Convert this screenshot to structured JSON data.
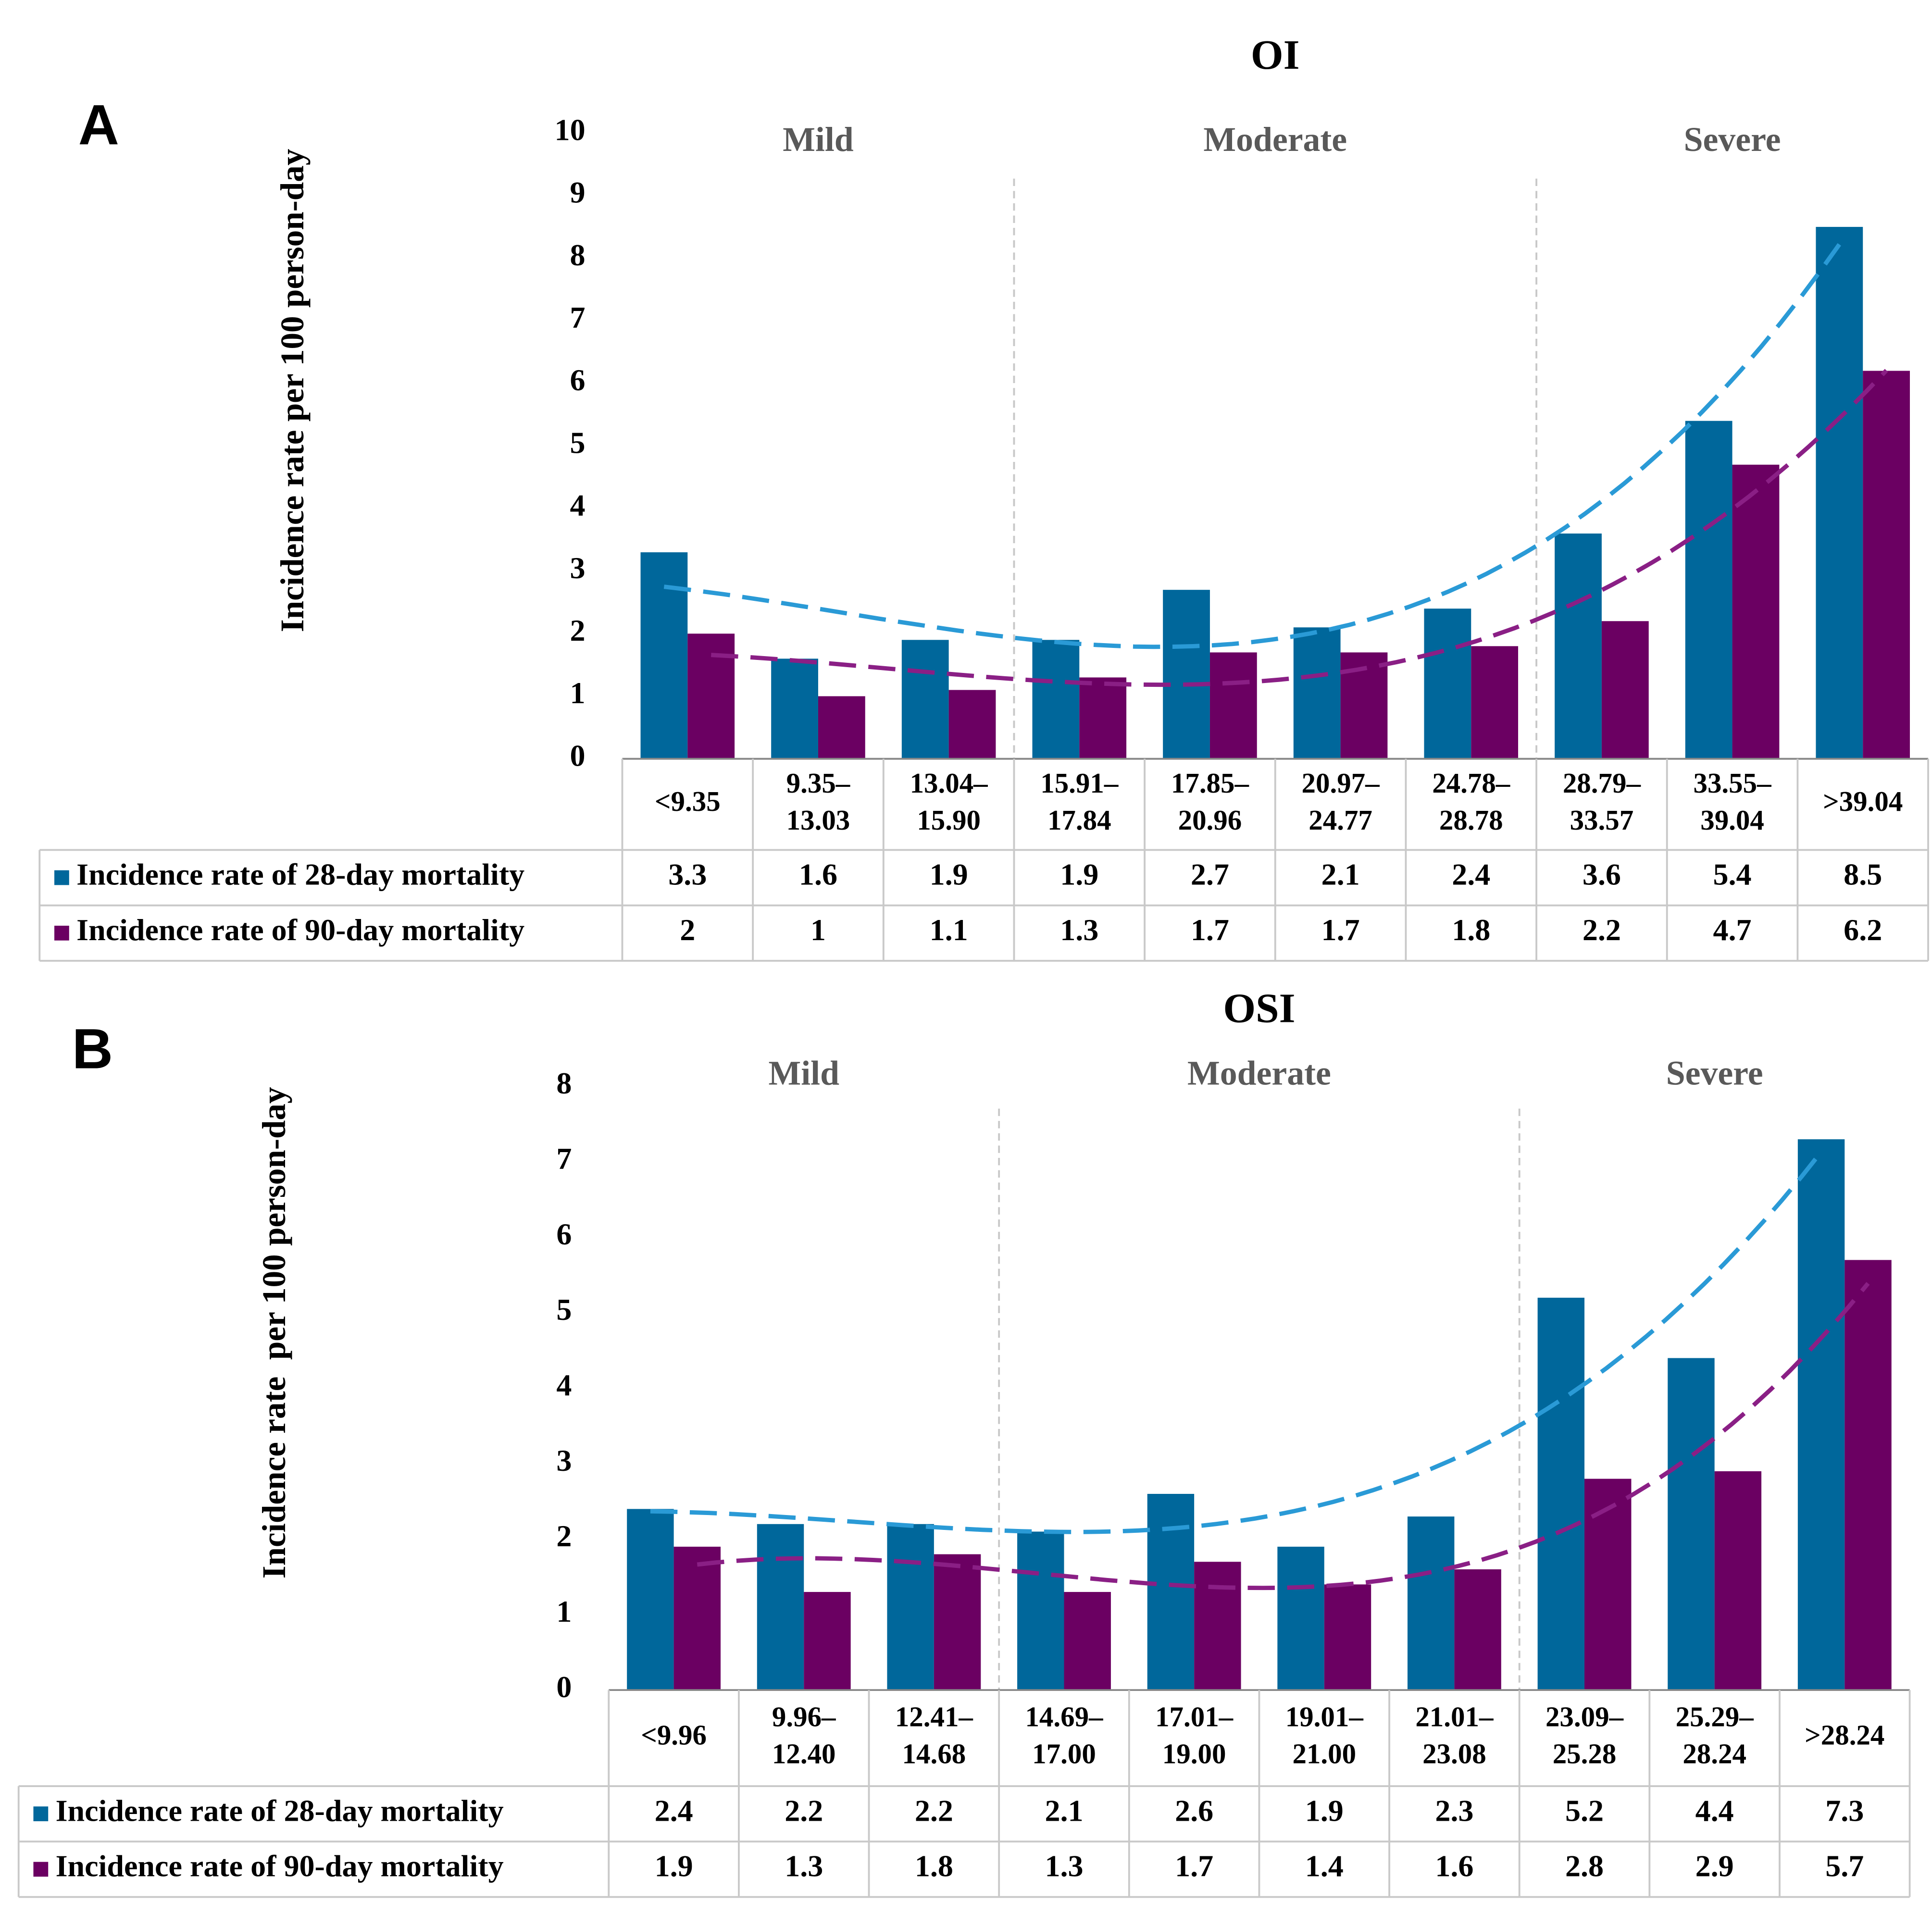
{
  "chart_data": [
    {
      "type": "bar",
      "panel": "A",
      "title": "OI",
      "y_label": "Incidence rate per 100 person-day",
      "categories": [
        "<9.35",
        "9.35–13.03",
        "13.04–15.90",
        "15.91–17.84",
        "17.85–20.96",
        "20.97–24.77",
        "24.78–28.78",
        "28.79–33.57",
        "33.55–39.04",
        ">39.04"
      ],
      "series": [
        {
          "name": "Incidence rate of 28-day mortality",
          "color": "#00679b",
          "values": [
            3.3,
            1.6,
            1.9,
            1.9,
            2.7,
            2.1,
            2.4,
            3.6,
            5.4,
            8.5
          ]
        },
        {
          "name": "Incidence rate of 90-day mortality",
          "color": "#6b0062",
          "values": [
            2,
            1,
            1.1,
            1.3,
            1.7,
            1.7,
            1.8,
            2.2,
            4.7,
            6.2
          ]
        }
      ],
      "trendline": "polynomial",
      "trend_colors": [
        "#2a9ad6",
        "#8a1f85"
      ],
      "sections": [
        {
          "label": "Mild",
          "categories": [
            "<9.35",
            "9.35–13.03",
            "13.04–15.90"
          ]
        },
        {
          "label": "Moderate",
          "categories": [
            "15.91–17.84",
            "17.85–20.96",
            "20.97–24.77",
            "24.78–28.78"
          ]
        },
        {
          "label": "Severe",
          "categories": [
            "28.79–33.57",
            "33.55–39.04",
            ">39.04"
          ]
        }
      ],
      "ylim": [
        0,
        10
      ],
      "yticks": [
        0,
        1,
        2,
        3,
        4,
        5,
        6,
        7,
        8,
        9,
        10
      ],
      "grid": false
    },
    {
      "type": "bar",
      "panel": "B",
      "title": "OSI",
      "y_label": "Incidence rate  per 100 person-day",
      "categories": [
        "<9.96",
        "9.96–12.40",
        "12.41–14.68",
        "14.69–17.00",
        "17.01–19.00",
        "19.01–21.00",
        "21.01–23.08",
        "23.09–25.28",
        "25.29–28.24",
        ">28.24"
      ],
      "series": [
        {
          "name": "Incidence rate of 28-day mortality",
          "color": "#00679b",
          "values": [
            2.4,
            2.2,
            2.2,
            2.1,
            2.6,
            1.9,
            2.3,
            5.2,
            4.4,
            7.3
          ]
        },
        {
          "name": "Incidence rate of 90-day mortality",
          "color": "#6b0062",
          "values": [
            1.9,
            1.3,
            1.8,
            1.3,
            1.7,
            1.4,
            1.6,
            2.8,
            2.9,
            5.7
          ]
        }
      ],
      "trendline": "polynomial",
      "trend_colors": [
        "#2a9ad6",
        "#8a1f85"
      ],
      "sections": [
        {
          "label": "Mild",
          "categories": [
            "<9.96",
            "9.96–12.40",
            "12.41–14.68"
          ]
        },
        {
          "label": "Moderate",
          "categories": [
            "14.69–17.00",
            "17.01–19.00",
            "19.01–21.00",
            "21.01–23.08"
          ]
        },
        {
          "label": "Severe",
          "categories": [
            "23.09–25.28",
            "25.29–28.24",
            ">28.24"
          ]
        }
      ],
      "ylim": [
        0,
        8
      ],
      "yticks": [
        0,
        1,
        2,
        3,
        4,
        5,
        6,
        7,
        8
      ],
      "grid": false
    }
  ]
}
